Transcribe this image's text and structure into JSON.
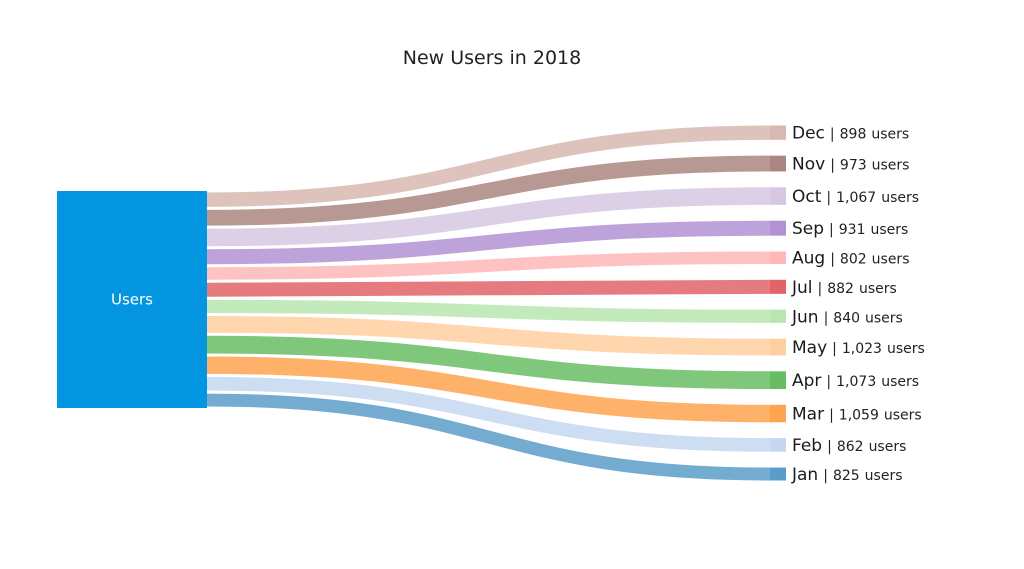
{
  "chart_data": {
    "type": "sankey",
    "title": "New Users in 2018",
    "source": {
      "label": "Users",
      "color": "#0395df"
    },
    "unit_suffix": "users",
    "separator": "|",
    "flows": [
      {
        "label": "Jan",
        "value": 825,
        "value_text": "825",
        "color": "#5b9cc9"
      },
      {
        "label": "Feb",
        "value": 862,
        "value_text": "862",
        "color": "#c6d8f0"
      },
      {
        "label": "Mar",
        "value": 1059,
        "value_text": "1,059",
        "color": "#fea34f"
      },
      {
        "label": "Apr",
        "value": 1073,
        "value_text": "1,073",
        "color": "#68bd63"
      },
      {
        "label": "May",
        "value": 1023,
        "value_text": "1,023",
        "color": "#ffcf9f"
      },
      {
        "label": "Jun",
        "value": 840,
        "value_text": "840",
        "color": "#b9e6ae"
      },
      {
        "label": "Jul",
        "value": 882,
        "value_text": "882",
        "color": "#e06468"
      },
      {
        "label": "Aug",
        "value": 802,
        "value_text": "802",
        "color": "#ffb7b7"
      },
      {
        "label": "Sep",
        "value": 931,
        "value_text": "931",
        "color": "#b193d3"
      },
      {
        "label": "Oct",
        "value": 1067,
        "value_text": "1,067",
        "color": "#d6c8e2"
      },
      {
        "label": "Nov",
        "value": 973,
        "value_text": "973",
        "color": "#ab8680"
      },
      {
        "label": "Dec",
        "value": 898,
        "value_text": "898",
        "color": "#d8b9b2"
      }
    ]
  }
}
